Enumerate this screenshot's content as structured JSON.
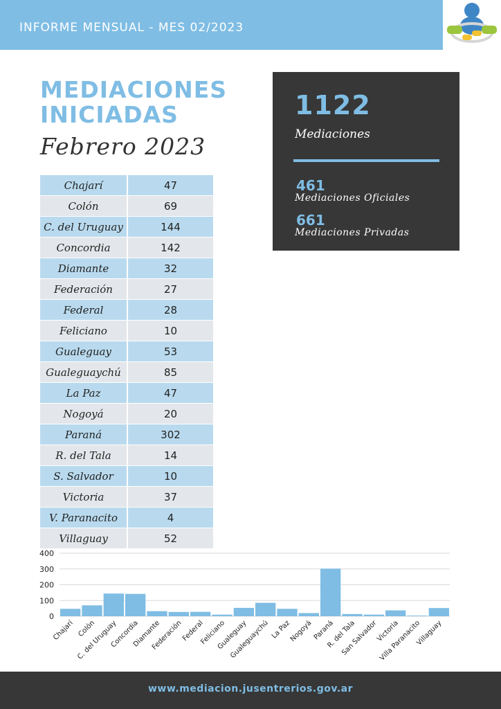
{
  "header": {
    "title": "INFORME MENSUAL - MES 02/2023"
  },
  "heading": {
    "line1": "MEDIACIONES",
    "line2": "INICIADAS",
    "subtitle": "Febrero 2023"
  },
  "summary": {
    "total": "1122",
    "total_label": "Mediaciones",
    "oficiales": "461",
    "oficiales_label": "Mediaciones Oficiales",
    "privadas": "661",
    "privadas_label": "Mediaciones Privadas"
  },
  "table": [
    {
      "name": "Chajarí",
      "value": "47"
    },
    {
      "name": "Colón",
      "value": "69"
    },
    {
      "name": "C. del Uruguay",
      "value": "144"
    },
    {
      "name": "Concordia",
      "value": "142"
    },
    {
      "name": "Diamante",
      "value": "32"
    },
    {
      "name": "Federación",
      "value": "27"
    },
    {
      "name": "Federal",
      "value": "28"
    },
    {
      "name": "Feliciano",
      "value": "10"
    },
    {
      "name": "Gualeguay",
      "value": "53"
    },
    {
      "name": "Gualeguaychú",
      "value": "85"
    },
    {
      "name": "La Paz",
      "value": "47"
    },
    {
      "name": "Nogoyá",
      "value": "20"
    },
    {
      "name": "Paraná",
      "value": "302"
    },
    {
      "name": "R. del Tala",
      "value": "14"
    },
    {
      "name": "S. Salvador",
      "value": "10"
    },
    {
      "name": "Victoria",
      "value": "37"
    },
    {
      "name": "V. Paranacito",
      "value": "4"
    },
    {
      "name": "Villaguay",
      "value": "52"
    }
  ],
  "chart_data": {
    "type": "bar",
    "categories": [
      "Chajarí",
      "Colón",
      "C. del Uruguay",
      "Concordia",
      "Diamante",
      "Federación",
      "Federal",
      "Feliciano",
      "Gualeguay",
      "Gualeguaychú",
      "La Paz",
      "Nogoyá",
      "Paraná",
      "R. del Tala",
      "San Salvador",
      "Victoria",
      "Villa Paranacito",
      "Villaguay"
    ],
    "values": [
      47,
      69,
      144,
      142,
      32,
      27,
      28,
      10,
      53,
      85,
      47,
      20,
      302,
      14,
      10,
      37,
      4,
      52
    ],
    "yticks": [
      0,
      100,
      200,
      300,
      400
    ],
    "ylim": [
      0,
      400
    ],
    "grid": true,
    "bar_color": "#7fbde4"
  },
  "footer": {
    "url": "www.mediacion.jusentrerios.gov.ar"
  },
  "colors": {
    "accent": "#7fbde4",
    "dark": "#373737"
  }
}
